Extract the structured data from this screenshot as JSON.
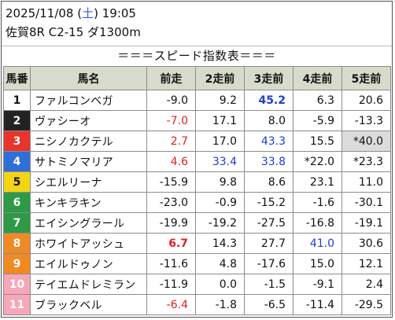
{
  "header": {
    "date": "2025/11/08",
    "weekday": "土",
    "time": "19:05",
    "race": "佐賀8R C2-15 ダ1300m"
  },
  "subtitle": "＝＝＝スピード指数表＝＝＝",
  "columns": [
    "馬番",
    "馬名",
    "前走",
    "2走前",
    "3走前",
    "4走前",
    "5走前"
  ],
  "colors": {
    "post_1": "#ffffff",
    "post_2": "#222222",
    "post_3": "#e8342c",
    "post_4": "#2f6fd8",
    "post_5": "#f4d516",
    "post_6": "#2e9a46",
    "post_7": "#f08a24",
    "post_8": "#f08a24",
    "post_9": "#f7a7b8",
    "post_10": "#f7a7b8",
    "post_11": "#f7a7b8"
  },
  "rows": [
    {
      "num": "1",
      "name": "ファルコンベガ",
      "r1": "-9.0",
      "r2": "9.2",
      "r3": "45.2",
      "r4": "6.3",
      "r5": "20.6"
    },
    {
      "num": "2",
      "name": "ヴァシーオ",
      "r1": "-7.0",
      "r2": "17.1",
      "r3": "8.0",
      "r4": "-5.9",
      "r5": "-13.3"
    },
    {
      "num": "3",
      "name": "ニシノカクテル",
      "r1": "2.7",
      "r2": "17.0",
      "r3": "43.3",
      "r4": "15.5",
      "r5": "*40.0"
    },
    {
      "num": "4",
      "name": "サトミノマリア",
      "r1": "4.6",
      "r2": "33.4",
      "r3": "33.8",
      "r4": "*22.0",
      "r5": "*23.3"
    },
    {
      "num": "5",
      "name": "シエルリーナ",
      "r1": "-15.9",
      "r2": "9.8",
      "r3": "8.6",
      "r4": "23.1",
      "r5": "11.0"
    },
    {
      "num": "6",
      "name": "キンキラキン",
      "r1": "-23.0",
      "r2": "-0.9",
      "r3": "-15.2",
      "r4": "-1.6",
      "r5": "-30.1"
    },
    {
      "num": "7",
      "name": "エイシングラール",
      "r1": "-19.9",
      "r2": "-19.2",
      "r3": "-27.5",
      "r4": "-16.8",
      "r5": "-19.1"
    },
    {
      "num": "8",
      "name": "ホワイトアッシュ",
      "r1": "6.7",
      "r2": "14.3",
      "r3": "27.7",
      "r4": "41.0",
      "r5": "30.6"
    },
    {
      "num": "9",
      "name": "エイルドゥノン",
      "r1": "-11.6",
      "r2": "4.8",
      "r3": "-17.6",
      "r4": "15.0",
      "r5": "12.1"
    },
    {
      "num": "10",
      "name": "テイエムドレミラン",
      "r1": "-11.9",
      "r2": "0.0",
      "r3": "-1.5",
      "r4": "-9.1",
      "r5": "2.4"
    },
    {
      "num": "11",
      "name": "ブラックベル",
      "r1": "-6.4",
      "r2": "-1.8",
      "r3": "-6.5",
      "r4": "-11.4",
      "r5": "-29.5"
    }
  ]
}
